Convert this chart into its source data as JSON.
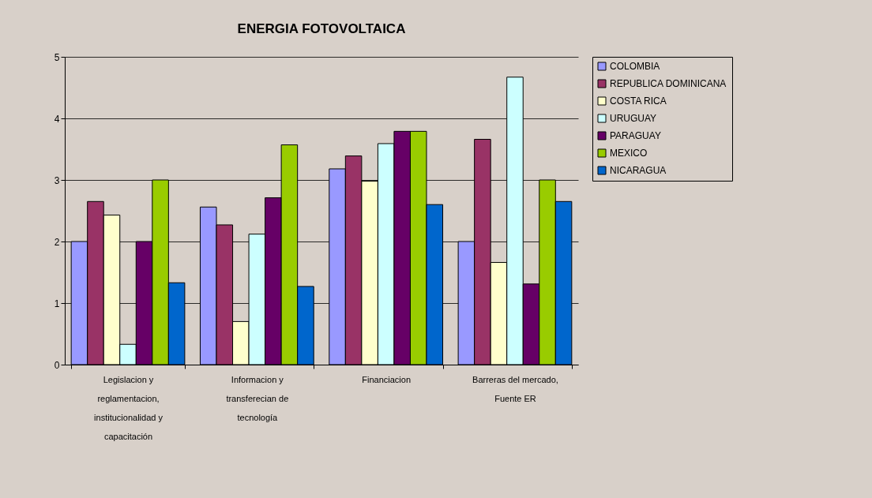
{
  "chart_data": {
    "type": "bar",
    "title": "ENERGIA FOTOVOLTAICA",
    "categories": [
      "Legislacion y reglamentacion, institucionalidad y capacitación",
      "Informacion y transferecian de tecnología",
      "Financiacion",
      "Barreras del mercado, Fuente ER"
    ],
    "series": [
      {
        "name": "COLOMBIA",
        "color": "#9999ff",
        "values": [
          2.0,
          2.56,
          3.18,
          2.0
        ]
      },
      {
        "name": "REPUBLICA DOMINICANA",
        "color": "#993366",
        "values": [
          2.65,
          2.27,
          3.39,
          3.66
        ]
      },
      {
        "name": "COSTA RICA",
        "color": "#ffffcc",
        "values": [
          2.43,
          0.7,
          2.98,
          1.66
        ]
      },
      {
        "name": "URUGUAY",
        "color": "#ccffff",
        "values": [
          0.33,
          2.12,
          3.59,
          4.67
        ]
      },
      {
        "name": "PARAGUAY",
        "color": "#660066",
        "values": [
          2.0,
          2.71,
          3.79,
          1.31
        ]
      },
      {
        "name": "MEXICO",
        "color": "#99cc00",
        "values": [
          3.0,
          3.57,
          3.79,
          3.0
        ]
      },
      {
        "name": "NICARAGUA",
        "color": "#0066cc",
        "values": [
          1.33,
          1.27,
          2.6,
          2.65
        ]
      }
    ],
    "ylim": [
      0,
      5
    ],
    "yticks": [
      0,
      1,
      2,
      3,
      4,
      5
    ],
    "grid": "y",
    "legend": "right"
  }
}
